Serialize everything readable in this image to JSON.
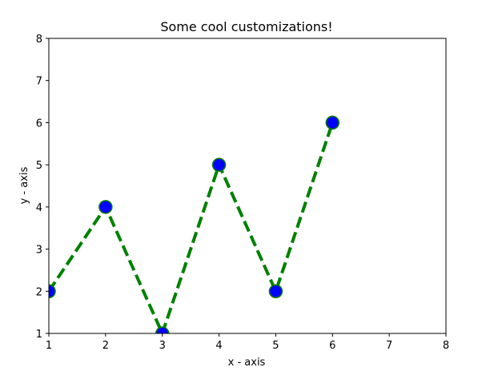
{
  "chart_data": {
    "type": "line",
    "title": "Some cool customizations!",
    "xlabel": "x - axis",
    "ylabel": "y - axis",
    "xlim": [
      1,
      8
    ],
    "ylim": [
      1,
      8
    ],
    "xticks": [
      "1",
      "2",
      "3",
      "4",
      "5",
      "6",
      "7",
      "8"
    ],
    "yticks": [
      "1",
      "2",
      "3",
      "4",
      "5",
      "6",
      "7",
      "8"
    ],
    "grid": false,
    "series": [
      {
        "x": [
          1,
          2,
          3,
          4,
          5,
          6
        ],
        "y": [
          2,
          4,
          1,
          5,
          2,
          6
        ],
        "line_color": "#008000",
        "line_style": "dashed",
        "marker": "circle",
        "marker_face_color": "#0000ff",
        "marker_edge_color": "#008000"
      }
    ]
  }
}
